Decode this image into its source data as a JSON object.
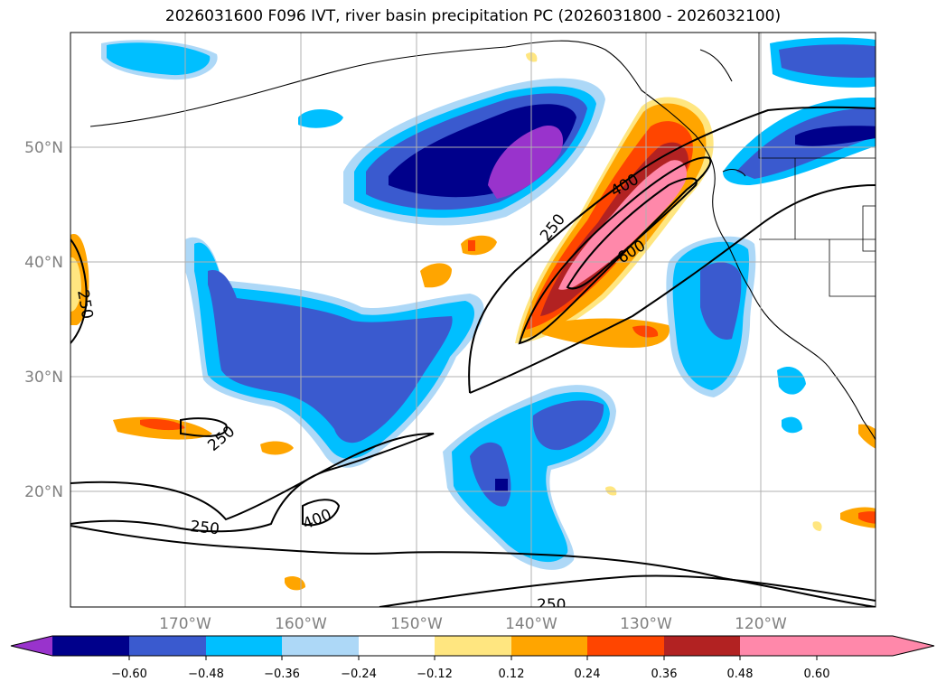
{
  "title": "2026031600 F096 IVT, river basin precipitation PC (2026031800 - 2026032100)",
  "map": {
    "lat_labels": [
      "50°N",
      "40°N",
      "30°N",
      "20°N"
    ],
    "lon_labels": [
      "170°W",
      "160°W",
      "150°W",
      "140°W",
      "130°W",
      "120°W"
    ],
    "ivt_contour_labels": [
      "250",
      "400",
      "250",
      "600",
      "250",
      "250",
      "400",
      "250"
    ]
  },
  "colorbar": {
    "ticks": [
      "−0.60",
      "−0.48",
      "−0.36",
      "−0.24",
      "−0.12",
      "0.12",
      "0.24",
      "0.36",
      "0.48",
      "0.60"
    ],
    "colors": [
      "#9933cc",
      "#00008b",
      "#3a5acf",
      "#00bfff",
      "#add8f7",
      "#ffffff",
      "#ffe680",
      "#ffa500",
      "#ff4500",
      "#b22222",
      "#ff88aa"
    ]
  }
}
